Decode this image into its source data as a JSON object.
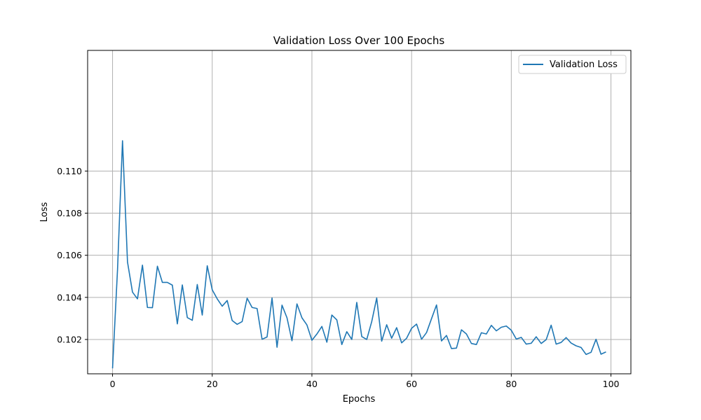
{
  "chart_data": {
    "type": "line",
    "title": "Validation Loss Over 100 Epochs",
    "xlabel": "Epochs",
    "ylabel": "Loss",
    "xlim": [
      -5,
      104
    ],
    "ylim": [
      0.10037,
      0.11573
    ],
    "xticks": [
      0,
      20,
      40,
      60,
      80,
      100
    ],
    "yticks": [
      0.102,
      0.104,
      0.106,
      0.108,
      0.11
    ],
    "ytick_labels": [
      "0.102",
      "0.104",
      "0.106",
      "0.108",
      "0.110"
    ],
    "grid": true,
    "legend_placement": "top-right",
    "series": [
      {
        "name": "Validation Loss",
        "color": "#1f77b4",
        "x": [
          0,
          1,
          2,
          3,
          4,
          5,
          6,
          7,
          8,
          9,
          10,
          11,
          12,
          13,
          14,
          15,
          16,
          17,
          18,
          19,
          20,
          21,
          22,
          23,
          24,
          25,
          26,
          27,
          28,
          29,
          30,
          31,
          32,
          33,
          34,
          35,
          36,
          37,
          38,
          39,
          40,
          41,
          42,
          43,
          44,
          45,
          46,
          47,
          48,
          49,
          50,
          51,
          52,
          53,
          54,
          55,
          56,
          57,
          58,
          59,
          60,
          61,
          62,
          63,
          64,
          65,
          66,
          67,
          68,
          69,
          70,
          71,
          72,
          73,
          74,
          75,
          76,
          77,
          78,
          79,
          80,
          81,
          82,
          83,
          84,
          85,
          86,
          87,
          88,
          89,
          90,
          91,
          92,
          93,
          94,
          95,
          96,
          97,
          98,
          99
        ],
        "values": [
          0.10063,
          0.10532,
          0.11144,
          0.10568,
          0.10425,
          0.10393,
          0.10553,
          0.10352,
          0.10351,
          0.10548,
          0.10471,
          0.10471,
          0.10458,
          0.10274,
          0.10459,
          0.10304,
          0.10291,
          0.10461,
          0.10316,
          0.1055,
          0.10436,
          0.10393,
          0.10358,
          0.10385,
          0.1029,
          0.10272,
          0.10285,
          0.10396,
          0.10352,
          0.10347,
          0.10201,
          0.10212,
          0.10397,
          0.10163,
          0.10363,
          0.10303,
          0.10194,
          0.10369,
          0.10303,
          0.10269,
          0.10196,
          0.10226,
          0.10262,
          0.10187,
          0.10316,
          0.10293,
          0.10176,
          0.10237,
          0.102,
          0.10376,
          0.10214,
          0.102,
          0.10285,
          0.10397,
          0.10192,
          0.1027,
          0.10206,
          0.10256,
          0.10184,
          0.10206,
          0.10253,
          0.10273,
          0.10201,
          0.10233,
          0.10299,
          0.10364,
          0.10193,
          0.10219,
          0.10157,
          0.10159,
          0.10246,
          0.10226,
          0.10181,
          0.10176,
          0.10232,
          0.10226,
          0.10267,
          0.10241,
          0.10258,
          0.10264,
          0.10244,
          0.10202,
          0.1021,
          0.10178,
          0.10182,
          0.10213,
          0.10181,
          0.10199,
          0.10268,
          0.10178,
          0.10186,
          0.10209,
          0.10183,
          0.1017,
          0.10162,
          0.10129,
          0.10139,
          0.10201,
          0.1013,
          0.10141
        ]
      }
    ]
  }
}
